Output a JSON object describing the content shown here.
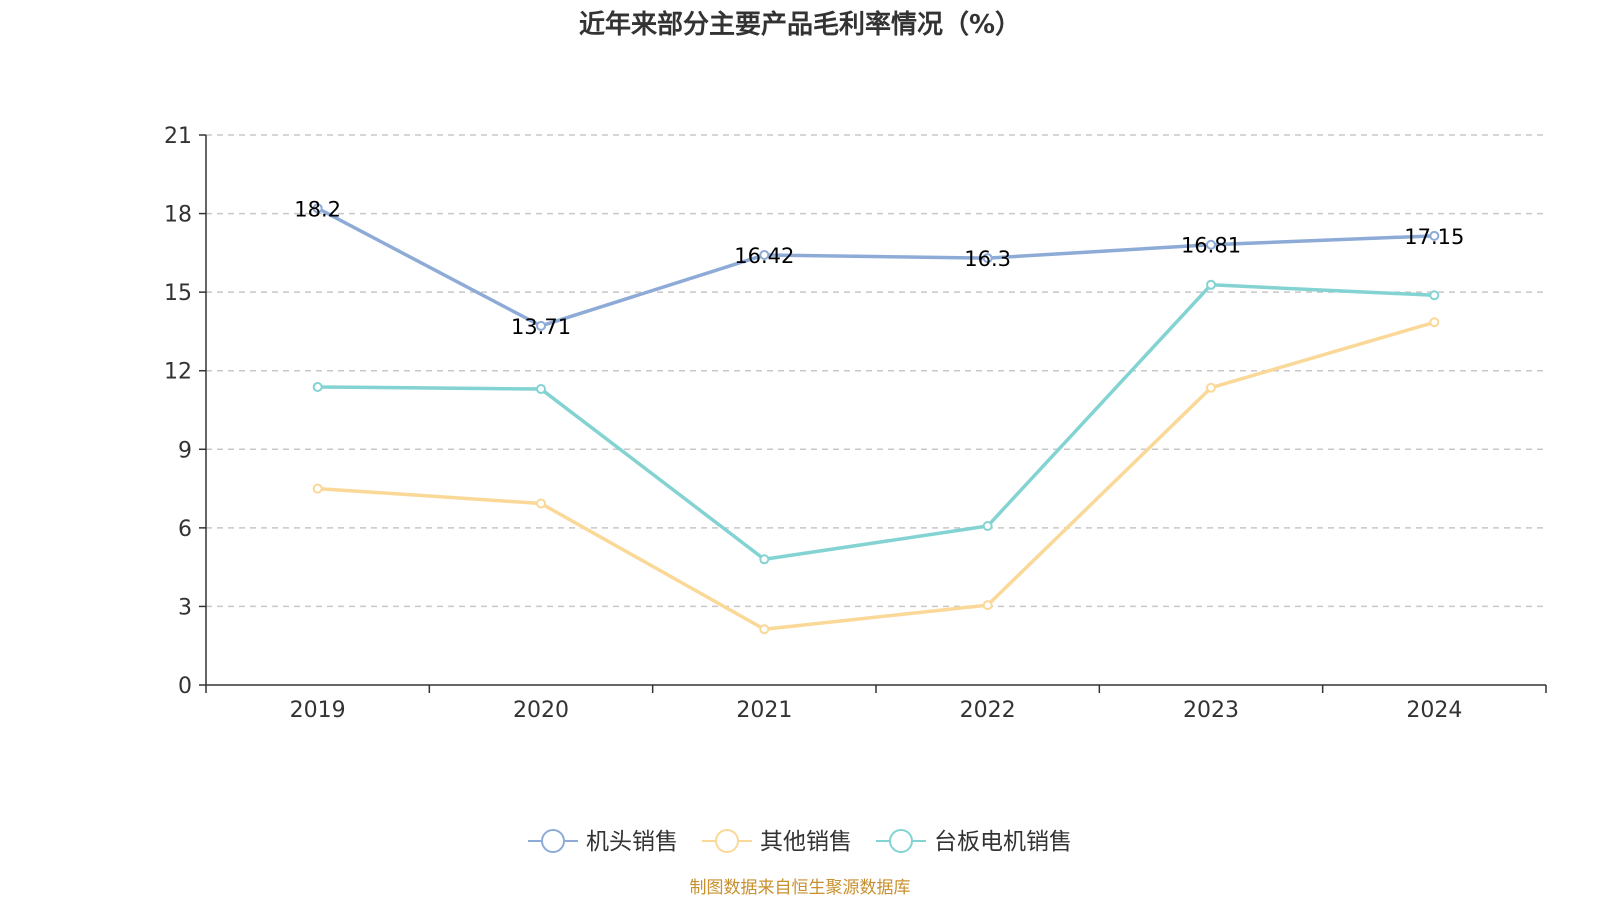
{
  "chart_data": {
    "type": "line",
    "title": "近年来部分主要产品毛利率情况（%）",
    "categories": [
      "2019",
      "2020",
      "2021",
      "2022",
      "2023",
      "2024"
    ],
    "ylim": [
      0,
      21
    ],
    "yticks": [
      0,
      3,
      6,
      9,
      12,
      15,
      18,
      21
    ],
    "grid": true,
    "legend_position": "bottom",
    "series": [
      {
        "name": "机头销售",
        "color": "#8eabd8",
        "values": [
          18.2,
          13.71,
          16.42,
          16.3,
          16.81,
          17.15
        ],
        "labeled": true
      },
      {
        "name": "其他销售",
        "color": "#fad897",
        "values": [
          7.5,
          6.93,
          2.13,
          3.05,
          11.35,
          13.85
        ],
        "labeled": false
      },
      {
        "name": "台板电机销售",
        "color": "#84d3d3",
        "values": [
          11.38,
          11.3,
          4.8,
          6.07,
          15.28,
          14.88
        ],
        "labeled": false
      }
    ],
    "source": "制图数据来自恒生聚源数据库",
    "source_color": "#c8902e"
  }
}
